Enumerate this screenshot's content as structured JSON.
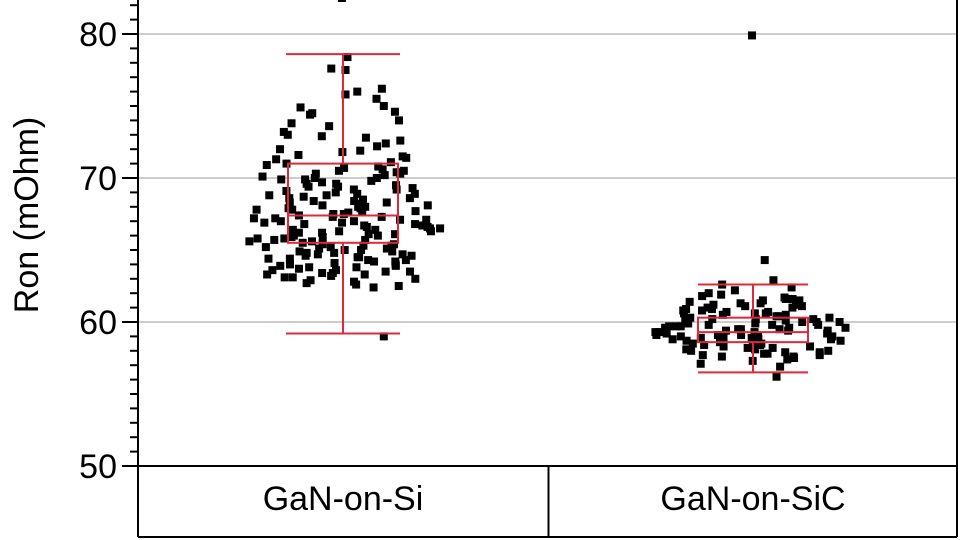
{
  "chart_data": {
    "type": "scatter",
    "subtype": "jittered box plot",
    "title": "",
    "xlabel": "",
    "ylabel": "Ron (mOhm)",
    "ylim": [
      50,
      83
    ],
    "yticks": [
      50,
      60,
      70,
      80
    ],
    "grid": true,
    "categories": [
      "GaN-on-Si",
      "GaN-on-SiC"
    ],
    "box_color": "#e0283c",
    "point_color": "#000000",
    "grid_color": "#cccccc",
    "groups": [
      {
        "category": "GaN-on-Si",
        "box": {
          "whisker_low": 59.2,
          "q1": 65.5,
          "median": 67.4,
          "q3": 71.0,
          "whisker_high": 78.6
        },
        "outliers": [
          82.5
        ],
        "points": [
          82.5,
          78.4,
          77.6,
          77.5,
          76.2,
          76.0,
          75.8,
          75.5,
          75.0,
          74.9,
          74.6,
          74.5,
          74.4,
          74.0,
          73.8,
          73.6,
          73.2,
          73.0,
          72.8,
          72.6,
          72.4,
          72.2,
          72.0,
          71.9,
          71.8,
          71.6,
          71.5,
          71.3,
          71.1,
          71.0,
          70.9,
          70.8,
          70.6,
          70.5,
          70.4,
          70.3,
          70.2,
          70.1,
          70.0,
          69.9,
          69.8,
          69.7,
          69.6,
          69.5,
          69.4,
          69.3,
          69.2,
          69.1,
          69.0,
          68.9,
          68.8,
          68.7,
          68.6,
          68.5,
          68.4,
          68.3,
          68.2,
          68.1,
          68.0,
          67.9,
          67.8,
          67.7,
          67.6,
          67.5,
          67.4,
          67.3,
          67.2,
          67.1,
          67.0,
          66.9,
          66.8,
          66.7,
          66.6,
          66.5,
          66.4,
          66.3,
          66.2,
          66.1,
          66.0,
          65.9,
          65.8,
          65.7,
          65.6,
          65.5,
          65.4,
          65.3,
          65.2,
          65.1,
          65.0,
          64.9,
          64.8,
          64.7,
          64.6,
          64.5,
          64.4,
          64.3,
          64.2,
          64.1,
          64.0,
          63.9,
          63.8,
          63.7,
          63.6,
          63.5,
          63.4,
          63.3,
          63.2,
          63.1,
          63.0,
          62.9,
          62.8,
          62.6,
          62.5,
          62.4,
          59.0,
          67.8,
          68.6,
          66.9,
          65.9,
          69.2,
          70.7,
          66.3,
          64.9,
          67.5,
          68.1,
          65.4,
          63.8,
          66.7,
          69.6,
          72.9,
          65.1,
          64.6,
          68.9,
          67.2,
          66.0,
          70.3,
          63.6,
          65.7,
          66.4,
          64.2,
          68.3,
          67.0,
          69.9,
          64.4,
          65.0,
          63.3,
          66.6,
          71.4,
          62.7,
          67.3,
          68.8,
          64.0,
          65.6,
          66.8,
          70.0,
          63.9,
          67.7,
          64.7,
          66.2,
          65.3,
          69.4,
          68.4,
          63.5,
          64.8,
          66.5,
          65.2,
          67.9,
          64.3,
          63.1,
          68.0,
          66.1,
          64.5,
          65.8,
          67.1,
          70.5,
          63.4
        ]
      },
      {
        "category": "GaN-on-SiC",
        "box": {
          "whisker_low": 56.5,
          "q1": 58.6,
          "median": 59.3,
          "q3": 60.3,
          "whisker_high": 62.6
        },
        "outliers": [
          79.9
        ],
        "points": [
          79.9,
          64.3,
          62.9,
          62.6,
          62.4,
          62.2,
          62.0,
          61.9,
          61.8,
          61.7,
          61.6,
          61.5,
          61.4,
          61.3,
          61.2,
          61.1,
          61.0,
          60.9,
          60.8,
          60.7,
          60.6,
          60.5,
          60.4,
          60.3,
          60.2,
          60.1,
          60.0,
          59.9,
          59.8,
          59.7,
          59.6,
          59.5,
          59.4,
          59.3,
          59.2,
          59.1,
          59.0,
          58.9,
          58.8,
          58.7,
          58.6,
          58.5,
          58.4,
          58.3,
          58.2,
          58.1,
          58.0,
          57.9,
          57.8,
          57.7,
          57.6,
          57.5,
          57.4,
          57.3,
          57.1,
          56.9,
          56.2,
          60.6,
          59.7,
          59.1,
          58.9,
          60.2,
          59.5,
          61.3,
          59.8,
          58.4,
          60.0,
          59.3,
          58.7,
          60.4,
          59.9,
          58.8,
          61.0,
          59.6,
          58.2,
          60.1,
          59.4,
          60.7,
          59.0,
          58.6,
          59.2,
          60.3,
          57.9,
          61.5,
          58.5,
          59.6,
          60.5,
          58.1,
          59.8,
          60.8,
          57.7,
          59.3,
          61.1,
          58.3,
          60.9,
          59.1,
          58.0,
          60.2,
          59.7,
          58.9,
          61.2,
          59.5,
          57.6,
          60.0,
          58.8,
          59.4,
          61.6,
          58.4,
          60.6,
          59.9,
          57.8,
          59.0
        ]
      }
    ]
  }
}
